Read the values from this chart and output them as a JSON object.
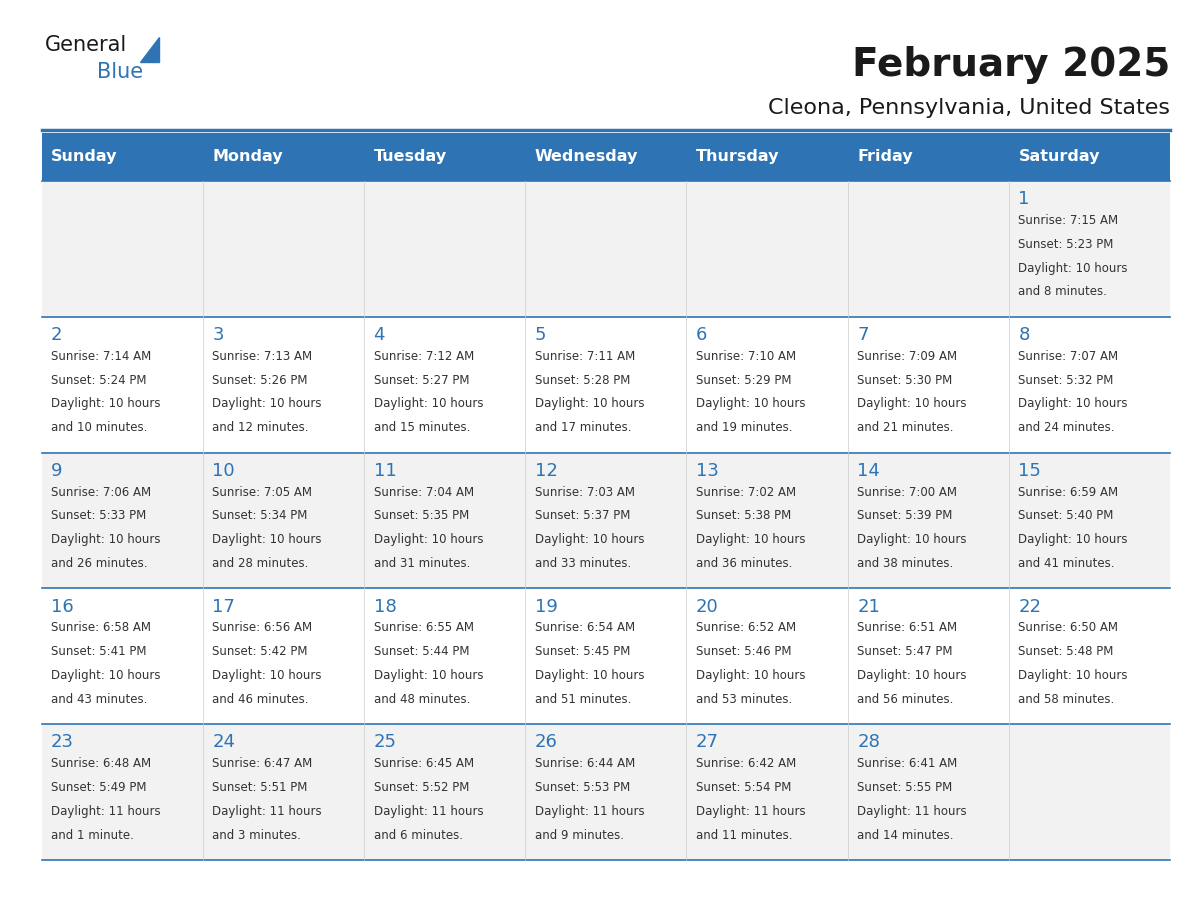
{
  "title": "February 2025",
  "subtitle": "Cleona, Pennsylvania, United States",
  "header_bg_color": "#2E74B5",
  "header_text_color": "#FFFFFF",
  "cell_bg_even": "#F2F2F2",
  "cell_bg_odd": "#FFFFFF",
  "cell_text_color": "#333333",
  "day_number_color": "#2E74B5",
  "title_color": "#1a1a1a",
  "subtitle_color": "#1a1a1a",
  "separator_color": "#2E74B5",
  "days_of_week": [
    "Sunday",
    "Monday",
    "Tuesday",
    "Wednesday",
    "Thursday",
    "Friday",
    "Saturday"
  ],
  "weeks": [
    [
      {
        "day": null,
        "info": ""
      },
      {
        "day": null,
        "info": ""
      },
      {
        "day": null,
        "info": ""
      },
      {
        "day": null,
        "info": ""
      },
      {
        "day": null,
        "info": ""
      },
      {
        "day": null,
        "info": ""
      },
      {
        "day": 1,
        "info": "Sunrise: 7:15 AM\nSunset: 5:23 PM\nDaylight: 10 hours\nand 8 minutes."
      }
    ],
    [
      {
        "day": 2,
        "info": "Sunrise: 7:14 AM\nSunset: 5:24 PM\nDaylight: 10 hours\nand 10 minutes."
      },
      {
        "day": 3,
        "info": "Sunrise: 7:13 AM\nSunset: 5:26 PM\nDaylight: 10 hours\nand 12 minutes."
      },
      {
        "day": 4,
        "info": "Sunrise: 7:12 AM\nSunset: 5:27 PM\nDaylight: 10 hours\nand 15 minutes."
      },
      {
        "day": 5,
        "info": "Sunrise: 7:11 AM\nSunset: 5:28 PM\nDaylight: 10 hours\nand 17 minutes."
      },
      {
        "day": 6,
        "info": "Sunrise: 7:10 AM\nSunset: 5:29 PM\nDaylight: 10 hours\nand 19 minutes."
      },
      {
        "day": 7,
        "info": "Sunrise: 7:09 AM\nSunset: 5:30 PM\nDaylight: 10 hours\nand 21 minutes."
      },
      {
        "day": 8,
        "info": "Sunrise: 7:07 AM\nSunset: 5:32 PM\nDaylight: 10 hours\nand 24 minutes."
      }
    ],
    [
      {
        "day": 9,
        "info": "Sunrise: 7:06 AM\nSunset: 5:33 PM\nDaylight: 10 hours\nand 26 minutes."
      },
      {
        "day": 10,
        "info": "Sunrise: 7:05 AM\nSunset: 5:34 PM\nDaylight: 10 hours\nand 28 minutes."
      },
      {
        "day": 11,
        "info": "Sunrise: 7:04 AM\nSunset: 5:35 PM\nDaylight: 10 hours\nand 31 minutes."
      },
      {
        "day": 12,
        "info": "Sunrise: 7:03 AM\nSunset: 5:37 PM\nDaylight: 10 hours\nand 33 minutes."
      },
      {
        "day": 13,
        "info": "Sunrise: 7:02 AM\nSunset: 5:38 PM\nDaylight: 10 hours\nand 36 minutes."
      },
      {
        "day": 14,
        "info": "Sunrise: 7:00 AM\nSunset: 5:39 PM\nDaylight: 10 hours\nand 38 minutes."
      },
      {
        "day": 15,
        "info": "Sunrise: 6:59 AM\nSunset: 5:40 PM\nDaylight: 10 hours\nand 41 minutes."
      }
    ],
    [
      {
        "day": 16,
        "info": "Sunrise: 6:58 AM\nSunset: 5:41 PM\nDaylight: 10 hours\nand 43 minutes."
      },
      {
        "day": 17,
        "info": "Sunrise: 6:56 AM\nSunset: 5:42 PM\nDaylight: 10 hours\nand 46 minutes."
      },
      {
        "day": 18,
        "info": "Sunrise: 6:55 AM\nSunset: 5:44 PM\nDaylight: 10 hours\nand 48 minutes."
      },
      {
        "day": 19,
        "info": "Sunrise: 6:54 AM\nSunset: 5:45 PM\nDaylight: 10 hours\nand 51 minutes."
      },
      {
        "day": 20,
        "info": "Sunrise: 6:52 AM\nSunset: 5:46 PM\nDaylight: 10 hours\nand 53 minutes."
      },
      {
        "day": 21,
        "info": "Sunrise: 6:51 AM\nSunset: 5:47 PM\nDaylight: 10 hours\nand 56 minutes."
      },
      {
        "day": 22,
        "info": "Sunrise: 6:50 AM\nSunset: 5:48 PM\nDaylight: 10 hours\nand 58 minutes."
      }
    ],
    [
      {
        "day": 23,
        "info": "Sunrise: 6:48 AM\nSunset: 5:49 PM\nDaylight: 11 hours\nand 1 minute."
      },
      {
        "day": 24,
        "info": "Sunrise: 6:47 AM\nSunset: 5:51 PM\nDaylight: 11 hours\nand 3 minutes."
      },
      {
        "day": 25,
        "info": "Sunrise: 6:45 AM\nSunset: 5:52 PM\nDaylight: 11 hours\nand 6 minutes."
      },
      {
        "day": 26,
        "info": "Sunrise: 6:44 AM\nSunset: 5:53 PM\nDaylight: 11 hours\nand 9 minutes."
      },
      {
        "day": 27,
        "info": "Sunrise: 6:42 AM\nSunset: 5:54 PM\nDaylight: 11 hours\nand 11 minutes."
      },
      {
        "day": 28,
        "info": "Sunrise: 6:41 AM\nSunset: 5:55 PM\nDaylight: 11 hours\nand 14 minutes."
      },
      {
        "day": null,
        "info": ""
      }
    ]
  ],
  "n_cols": 7,
  "n_weeks": 5
}
